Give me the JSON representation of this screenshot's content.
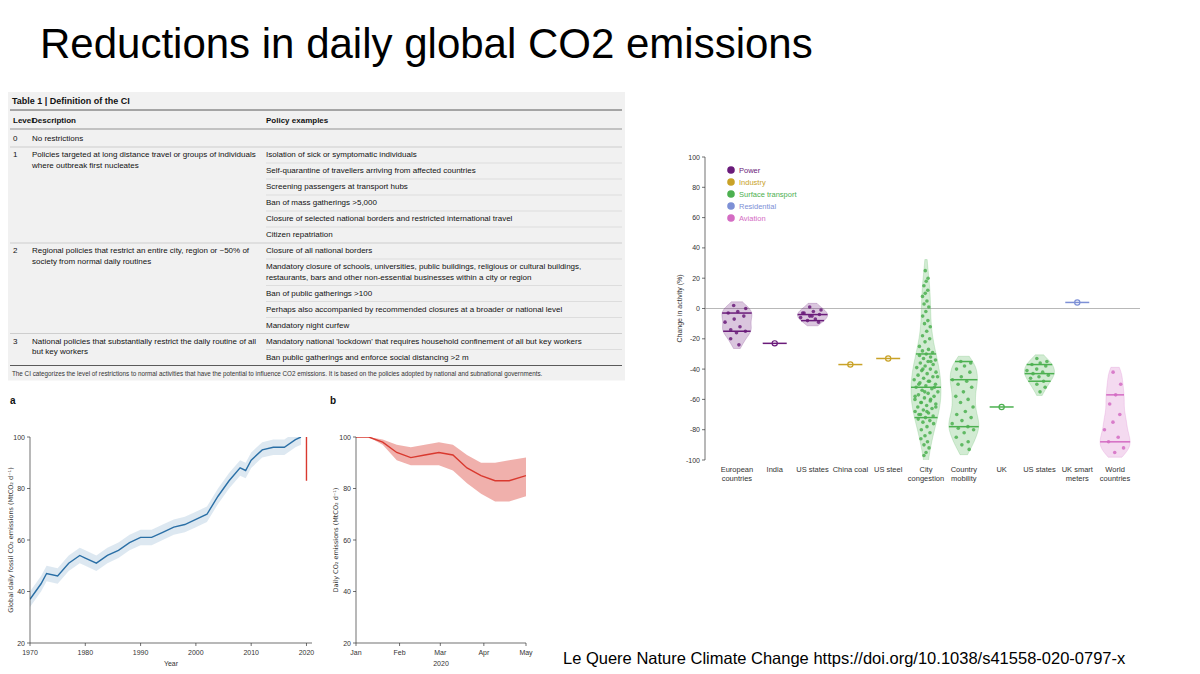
{
  "title": "Reductions in daily global CO2 emissions",
  "table": {
    "title": "Table 1 | Definition of the CI",
    "columns": [
      "Level",
      "Description",
      "Policy examples"
    ],
    "rows": [
      {
        "level": 0,
        "description": "No restrictions",
        "examples": []
      },
      {
        "level": 1,
        "description": "Policies targeted at long distance travel or groups of individuals where outbreak first nucleates",
        "examples": [
          "Isolation of sick or symptomatic individuals",
          "Self-quarantine of travellers arriving from affected countries",
          "Screening passengers at transport hubs",
          "Ban of mass gatherings >5,000",
          "Closure of selected national borders and restricted international travel",
          "Citizen repatriation"
        ]
      },
      {
        "level": 2,
        "description": "Regional policies that restrict an entire city, region or ~50% of society from normal daily routines",
        "examples": [
          "Closure of all national borders",
          "Mandatory closure of schools, universities, public buildings, religious or cultural buildings, restaurants, bars and other non-essential businesses within a city or region",
          "Ban of public gatherings >100",
          "Perhaps also accompanied by recommended closures at a broader or national level",
          "Mandatory night curfew"
        ]
      },
      {
        "level": 3,
        "description": "National policies that substantially restrict the daily routine of all but key workers",
        "examples": [
          "Mandatory national 'lockdown' that requires household confinement of all but key workers",
          "Ban public gatherings and enforce social distancing >2 m"
        ]
      }
    ],
    "note": "The CI categorizes the level of restrictions to normal activities that have the potential to influence CO2 emissions. It is based on the policies adopted by national and subnational governments."
  },
  "chart_data": [
    {
      "type": "line",
      "title": "a",
      "x_label": "Year",
      "y_label": "Global daily fossil CO₂ emissions (MtCO₂ d⁻¹)",
      "xlim": [
        1970,
        2021
      ],
      "xticks": [
        1970,
        1980,
        1990,
        2000,
        2010,
        2020
      ],
      "ylim": [
        20,
        100
      ],
      "yticks": [
        20,
        40,
        60,
        80,
        100
      ],
      "grid": false,
      "series": [
        {
          "color": "#2a6fa6",
          "x": [
            1970,
            1972,
            1973,
            1975,
            1977,
            1979,
            1980,
            1982,
            1984,
            1986,
            1988,
            1990,
            1992,
            1994,
            1996,
            1998,
            2000,
            2002,
            2004,
            2006,
            2008,
            2009,
            2010,
            2012,
            2014,
            2016,
            2018,
            2019
          ],
          "values": [
            37,
            43,
            47,
            46,
            51,
            54,
            53,
            51,
            54,
            56,
            59,
            61,
            61,
            63,
            65,
            66,
            68,
            70,
            77,
            83,
            88,
            87,
            91,
            95,
            96,
            96,
            99,
            100
          ],
          "lower": [
            34,
            40,
            44,
            43,
            48,
            51,
            50,
            48,
            51,
            53,
            56,
            58,
            58,
            60,
            62,
            63,
            65,
            67,
            74,
            80,
            85,
            84,
            88,
            92,
            93,
            93,
            96,
            97
          ],
          "upper": [
            40,
            46,
            50,
            49,
            54,
            57,
            56,
            54,
            57,
            59,
            62,
            64,
            64,
            66,
            68,
            69,
            71,
            73,
            80,
            86,
            91,
            90,
            94,
            98,
            99,
            99,
            102,
            103
          ]
        },
        {
          "color": "#d9392f",
          "x": [
            2020,
            2020
          ],
          "values": [
            100,
            83
          ]
        }
      ]
    },
    {
      "type": "line",
      "title": "b",
      "x_label": "2020",
      "y_label": "Daily CO₂ emissions (MtCO₂ d⁻¹)",
      "xlim": [
        1,
        122
      ],
      "xticks": [
        {
          "value": 1,
          "label": "Jan"
        },
        {
          "value": 32,
          "label": "Feb"
        },
        {
          "value": 61,
          "label": "Mar"
        },
        {
          "value": 92,
          "label": "Apr"
        },
        {
          "value": 122,
          "label": "May"
        }
      ],
      "ylim": [
        20,
        100
      ],
      "yticks": [
        20,
        40,
        60,
        80,
        100
      ],
      "grid": false,
      "series": [
        {
          "color": "#d9392f",
          "x": [
            1,
            10,
            20,
            30,
            40,
            50,
            60,
            70,
            80,
            90,
            100,
            110,
            122
          ],
          "values": [
            100,
            100,
            98,
            94,
            92,
            93,
            94,
            93,
            88,
            85,
            83,
            83,
            85
          ],
          "lower": [
            100,
            100,
            97,
            91,
            89,
            89,
            89,
            87,
            82,
            78,
            75,
            75,
            77
          ],
          "upper": [
            100,
            100,
            99,
            97,
            96,
            97,
            98,
            97,
            93,
            90,
            90,
            91,
            92
          ]
        }
      ]
    },
    {
      "type": "violin",
      "y_label": "Change in activity (%)",
      "ylim": [
        -100,
        100
      ],
      "yticks": [
        -100,
        -80,
        -60,
        -40,
        -20,
        0,
        20,
        40,
        60,
        80,
        100
      ],
      "legend": "top-left",
      "categories": [
        "European countries",
        "India",
        "US states",
        "China coal",
        "US steel",
        "City congestion",
        "Country mobility",
        "UK",
        "US states",
        "UK smart meters",
        "World countries"
      ],
      "series": [
        {
          "name": "Power",
          "color": "#6a1b7a",
          "values": [
            [
              2,
              0,
              -2,
              -3,
              -5,
              -7,
              -9,
              -12,
              -14,
              -15,
              -16,
              -20,
              -24
            ],
            [
              -23
            ],
            [
              1,
              -1,
              -2,
              -3,
              -4,
              -5,
              -6,
              -7,
              -8,
              -9,
              -5,
              -3
            ],
            null,
            null,
            null,
            null,
            null,
            null,
            null,
            null
          ],
          "lines": [
            [
              -3,
              -15
            ],
            [
              -23
            ],
            [
              -4,
              -8
            ],
            null,
            null,
            null,
            null,
            null,
            null,
            null,
            null
          ]
        },
        {
          "name": "Industry",
          "color": "#c9a227",
          "values": [
            null,
            null,
            null,
            [
              -37
            ],
            [
              -33
            ],
            null,
            null,
            null,
            null,
            null,
            null
          ],
          "lines": [
            null,
            null,
            null,
            [
              -37
            ],
            [
              -33
            ],
            null,
            null,
            null,
            null,
            null,
            null
          ]
        },
        {
          "name": "Surface transport",
          "color": "#4cb050",
          "values": [
            null,
            null,
            null,
            null,
            null,
            [
              25,
              20,
              18,
              15,
              12,
              10,
              8,
              5,
              3,
              1,
              -2,
              -5,
              -8,
              -10,
              -12,
              -15,
              -18,
              -20,
              -22,
              -25,
              -27,
              -28,
              -29,
              -30,
              -31,
              -32,
              -33,
              -34,
              -35,
              -36,
              -37,
              -38,
              -39,
              -40,
              -41,
              -42,
              -43,
              -44,
              -45,
              -46,
              -47,
              -48,
              -49,
              -50,
              -51,
              -52,
              -53,
              -54,
              -55,
              -56,
              -57,
              -58,
              -59,
              -60,
              -61,
              -62,
              -63,
              -64,
              -65,
              -66,
              -67,
              -68,
              -69,
              -70,
              -71,
              -72,
              -73,
              -74,
              -75,
              -76,
              -78,
              -80,
              -82,
              -84,
              -86,
              -88,
              -90,
              -92,
              -95,
              -97,
              -35,
              -40,
              -45,
              -48,
              -50,
              -52,
              -55,
              -58,
              -60,
              -62,
              -65,
              -68,
              -70
            ],
            [
              -35,
              -36,
              -38,
              -40,
              -42,
              -45,
              -47,
              -48,
              -50,
              -52,
              -55,
              -58,
              -60,
              -62,
              -65,
              -68,
              -70,
              -72,
              -74,
              -76,
              -78,
              -79,
              -80,
              -82,
              -85,
              -88,
              -90,
              -93
            ],
            [
              -65
            ],
            [
              -33,
              -35,
              -36,
              -37,
              -38,
              -40,
              -41,
              -42,
              -43,
              -44,
              -45,
              -46,
              -48,
              -50,
              -52,
              -55
            ],
            null,
            null
          ],
          "lines": [
            null,
            null,
            null,
            null,
            null,
            [
              -30,
              -52,
              -72
            ],
            [
              -35,
              -47,
              -78
            ],
            [
              -65
            ],
            [
              -37,
              -43,
              -48
            ],
            null,
            null
          ]
        },
        {
          "name": "Residential",
          "color": "#7d90d6",
          "values": [
            null,
            null,
            null,
            null,
            null,
            null,
            null,
            null,
            null,
            [
              4
            ],
            null
          ],
          "lines": [
            null,
            null,
            null,
            null,
            null,
            null,
            null,
            null,
            null,
            [
              4
            ],
            null
          ]
        },
        {
          "name": "Aviation",
          "color": "#d46cc3",
          "values": [
            null,
            null,
            null,
            null,
            null,
            null,
            null,
            null,
            null,
            null,
            [
              -42,
              -50,
              -57,
              -63,
              -70,
              -75,
              -80,
              -85,
              -88,
              -92,
              -95
            ]
          ],
          "lines": [
            null,
            null,
            null,
            null,
            null,
            null,
            null,
            null,
            null,
            null,
            [
              -57,
              -88
            ]
          ]
        }
      ]
    }
  ],
  "citation": "Le Quere Nature Climate Change https://doi.org/10.1038/s41558-020-0797-x"
}
